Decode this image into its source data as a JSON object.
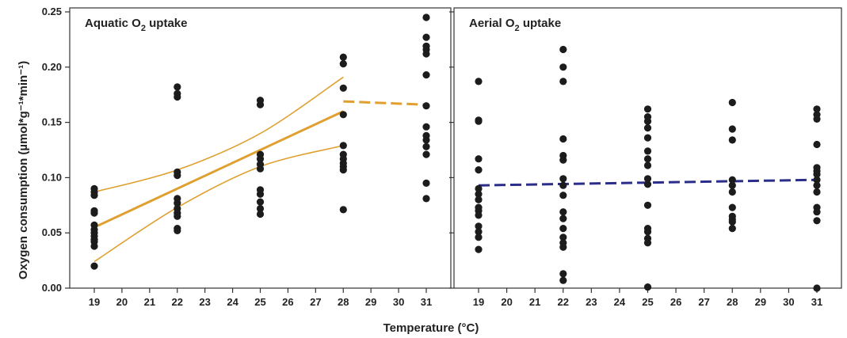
{
  "chart_data": {
    "type": "scatter",
    "ylabel": "Oxygen consumption (µmol*g⁻¹*min⁻¹)",
    "xlabel": "Temperature (°C)",
    "ylim": [
      0,
      0.25
    ],
    "yticks": [
      "0.00",
      "0.05",
      "0.10",
      "0.15",
      "0.20",
      "0.25"
    ],
    "xlim": [
      18.5,
      31.5
    ],
    "xticks": [
      19,
      20,
      21,
      22,
      23,
      24,
      25,
      26,
      27,
      28,
      29,
      30,
      31
    ],
    "grid": false,
    "colors": {
      "points": "#1c1c1c",
      "aquatic_fit": "#e0a030",
      "aerial_fit": "#2b2d8a",
      "axis": "#333333"
    },
    "panels": [
      {
        "title_main": "Aquatic O",
        "title_sub": "2",
        "title_rest": " uptake",
        "points": [
          {
            "x": 19,
            "y": [
              0.09,
              0.087,
              0.084,
              0.07,
              0.068,
              0.057,
              0.053,
              0.05,
              0.047,
              0.044,
              0.042,
              0.038,
              0.02
            ]
          },
          {
            "x": 22,
            "y": [
              0.182,
              0.176,
              0.173,
              0.105,
              0.102,
              0.081,
              0.077,
              0.072,
              0.068,
              0.065,
              0.054,
              0.052
            ]
          },
          {
            "x": 25,
            "y": [
              0.17,
              0.166,
              0.121,
              0.117,
              0.112,
              0.108,
              0.089,
              0.085,
              0.078,
              0.072,
              0.067
            ]
          },
          {
            "x": 28,
            "y": [
              0.209,
              0.203,
              0.181,
              0.157,
              0.129,
              0.121,
              0.117,
              0.113,
              0.11,
              0.107,
              0.071
            ]
          },
          {
            "x": 31,
            "y": [
              0.245,
              0.227,
              0.219,
              0.216,
              0.212,
              0.193,
              0.165,
              0.146,
              0.138,
              0.134,
              0.128,
              0.121,
              0.095,
              0.081
            ]
          }
        ],
        "fit": {
          "x": [
            19,
            28
          ],
          "y": [
            0.055,
            0.16
          ]
        },
        "ci_upper": {
          "x": [
            19,
            22,
            25,
            28
          ],
          "y": [
            0.087,
            0.107,
            0.14,
            0.191
          ]
        },
        "ci_lower": {
          "x": [
            19,
            22,
            25,
            28
          ],
          "y": [
            0.024,
            0.073,
            0.11,
            0.129
          ]
        },
        "dashed": {
          "x": [
            28,
            31
          ],
          "y": [
            0.169,
            0.166
          ]
        }
      },
      {
        "title_main": "Aerial O",
        "title_sub": "2",
        "title_rest": " uptake",
        "points": [
          {
            "x": 19,
            "y": [
              0.187,
              0.152,
              0.151,
              0.117,
              0.107,
              0.09,
              0.085,
              0.08,
              0.073,
              0.07,
              0.066,
              0.056,
              0.051,
              0.046,
              0.035
            ]
          },
          {
            "x": 22,
            "y": [
              0.216,
              0.2,
              0.187,
              0.135,
              0.12,
              0.116,
              0.099,
              0.093,
              0.084,
              0.069,
              0.063,
              0.054,
              0.046,
              0.041,
              0.037,
              0.013,
              0.007
            ]
          },
          {
            "x": 25,
            "y": [
              0.162,
              0.155,
              0.151,
              0.145,
              0.136,
              0.124,
              0.117,
              0.111,
              0.099,
              0.094,
              0.075,
              0.054,
              0.051,
              0.045,
              0.041,
              0.001
            ]
          },
          {
            "x": 28,
            "y": [
              0.168,
              0.144,
              0.134,
              0.098,
              0.093,
              0.087,
              0.073,
              0.065,
              0.062,
              0.06,
              0.054
            ]
          },
          {
            "x": 31,
            "y": [
              0.162,
              0.157,
              0.153,
              0.13,
              0.109,
              0.106,
              0.103,
              0.098,
              0.093,
              0.087,
              0.073,
              0.069,
              0.061,
              0.0
            ]
          }
        ],
        "dashed": {
          "x": [
            19,
            31
          ],
          "y": [
            0.093,
            0.098
          ]
        }
      }
    ]
  }
}
